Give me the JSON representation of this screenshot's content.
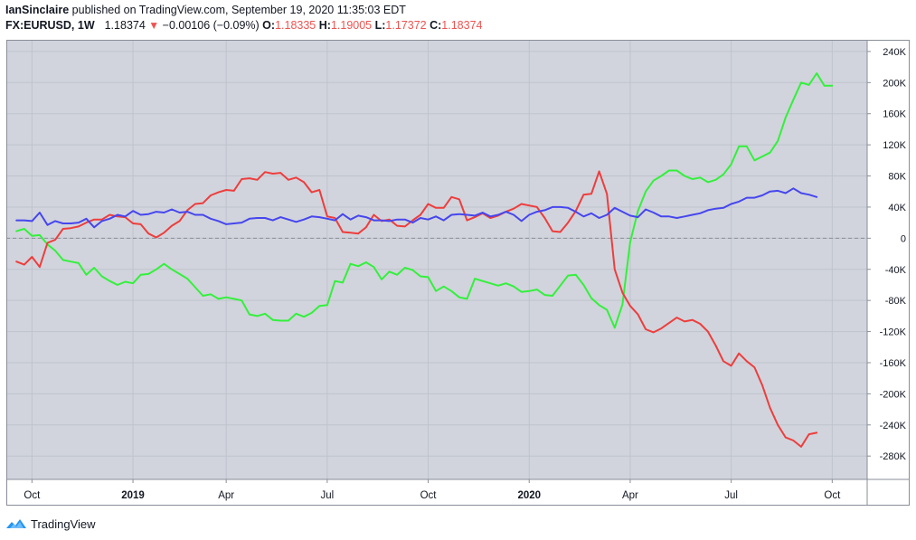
{
  "header": {
    "author": "IanSinclaire",
    "published_text": "published on TradingView.com, September 19, 2020 11:35:03 EDT",
    "symbol": "FX:EURUSD,",
    "interval": "1W",
    "price": "1.18374",
    "change": "−0.00106 (−0.09%)",
    "o_label": "O:",
    "o_value": "1.18335",
    "h_label": "H:",
    "h_value": "1.19005",
    "l_label": "L:",
    "l_value": "1.17372",
    "c_label": "C:",
    "c_value": "1.18374"
  },
  "footer": {
    "brand": "TradingView",
    "logo_icon": "tradingview-logo-icon"
  },
  "colors": {
    "plot_bg": "#d1d4dc",
    "grid": "#bfc3cc",
    "green": "#33f03c",
    "red": "#ee3d3d",
    "blue": "#4646ee",
    "zero_line": "#8a8e99",
    "down_arrow": "#ef5350"
  },
  "chart_data": {
    "type": "line",
    "title": "",
    "xlabel": "",
    "ylabel": "",
    "ylim": [
      -310000,
      255000
    ],
    "y_ticks": [
      240000,
      200000,
      160000,
      120000,
      80000,
      40000,
      0,
      -40000,
      -80000,
      -120000,
      -160000,
      -200000,
      -240000,
      -280000
    ],
    "y_tick_labels": [
      "240K",
      "200K",
      "160K",
      "120K",
      "80K",
      "40K",
      "0",
      "-40K",
      "-80K",
      "-120K",
      "-160K",
      "-200K",
      "-240K",
      "-280K"
    ],
    "x_ticks": [
      {
        "label": "Oct",
        "week": 2,
        "bold": false
      },
      {
        "label": "2019",
        "week": 15,
        "bold": true
      },
      {
        "label": "Apr",
        "week": 27,
        "bold": false
      },
      {
        "label": "Jul",
        "week": 40,
        "bold": false
      },
      {
        "label": "Oct",
        "week": 53,
        "bold": false
      },
      {
        "label": "2020",
        "week": 66,
        "bold": true
      },
      {
        "label": "Apr",
        "week": 79,
        "bold": false
      },
      {
        "label": "Jul",
        "week": 92,
        "bold": false
      },
      {
        "label": "Oct",
        "week": 105,
        "bold": false
      }
    ],
    "x_range": [
      -1.3,
      109.5
    ],
    "x_start": "2018-09-18",
    "x_step": "1 week",
    "grid": true,
    "legend": "none",
    "zero_line": true,
    "series": [
      {
        "color_key": "green",
        "values": [
          9000,
          12000,
          3000,
          4000,
          -8000,
          -16000,
          -28000,
          -30000,
          -32000,
          -47000,
          -38000,
          -49000,
          -55000,
          -60000,
          -56000,
          -58000,
          -47000,
          -46000,
          -40000,
          -33000,
          -40000,
          -46000,
          -52000,
          -63000,
          -74000,
          -72000,
          -78000,
          -76000,
          -78000,
          -80000,
          -98000,
          -100000,
          -97000,
          -105000,
          -106000,
          -106000,
          -97000,
          -101000,
          -96000,
          -87000,
          -86000,
          -55000,
          -57000,
          -33000,
          -36000,
          -31000,
          -37000,
          -53000,
          -43000,
          -47000,
          -38000,
          -41000,
          -49000,
          -50000,
          -68000,
          -62000,
          -68000,
          -76000,
          -78000,
          -52000,
          -55000,
          -58000,
          -61000,
          -58000,
          -62000,
          -69000,
          -68000,
          -66000,
          -73000,
          -74000,
          -61000,
          -48000,
          -47000,
          -60000,
          -77000,
          -86000,
          -92000,
          -115000,
          -85000,
          -5000,
          35000,
          60000,
          74000,
          80000,
          87000,
          87000,
          80000,
          76000,
          78000,
          72000,
          75000,
          82000,
          95000,
          118000,
          118000,
          100000,
          105000,
          110000,
          125000,
          155000,
          178000,
          200000,
          197000,
          212000,
          196000,
          196000
        ]
      },
      {
        "color_key": "red",
        "values": [
          -30000,
          -34000,
          -24000,
          -37000,
          -6000,
          -2000,
          12000,
          13000,
          15000,
          20000,
          24000,
          24000,
          30000,
          28000,
          27000,
          19000,
          18000,
          6000,
          1000,
          7000,
          16000,
          22000,
          36000,
          44000,
          45000,
          55000,
          59000,
          62000,
          61000,
          76000,
          77000,
          75000,
          85000,
          83000,
          84000,
          75000,
          78000,
          72000,
          59000,
          62000,
          28000,
          26000,
          8000,
          7000,
          6000,
          14000,
          30000,
          22000,
          24000,
          16000,
          15000,
          23000,
          30000,
          44000,
          39000,
          39000,
          53000,
          50000,
          23000,
          27000,
          32000,
          26000,
          29000,
          34000,
          38000,
          44000,
          42000,
          40000,
          26000,
          9000,
          8000,
          20000,
          35000,
          56000,
          57000,
          86000,
          57000,
          -40000,
          -70000,
          -87000,
          -98000,
          -117000,
          -121000,
          -116000,
          -109000,
          -102000,
          -107000,
          -105000,
          -110000,
          -120000,
          -138000,
          -158000,
          -164000,
          -148000,
          -158000,
          -166000,
          -189000,
          -218000,
          -240000,
          -256000,
          -260000,
          -268000,
          -252000,
          -250000
        ]
      },
      {
        "color_key": "blue",
        "values": [
          23000,
          23000,
          22000,
          33000,
          17000,
          22000,
          19000,
          19000,
          20000,
          25000,
          14000,
          22000,
          25000,
          30000,
          28000,
          35000,
          30000,
          31000,
          34000,
          33000,
          37000,
          33000,
          34000,
          30000,
          30000,
          25000,
          22000,
          18000,
          19000,
          20000,
          25000,
          26000,
          26000,
          23000,
          27000,
          24000,
          21000,
          24000,
          28000,
          27000,
          25000,
          23000,
          31000,
          24000,
          29000,
          27000,
          23000,
          23000,
          22000,
          24000,
          24000,
          20000,
          26000,
          24000,
          28000,
          23000,
          30000,
          31000,
          30000,
          29000,
          33000,
          28000,
          30000,
          34000,
          30000,
          22000,
          30000,
          34000,
          36000,
          40000,
          40000,
          39000,
          34000,
          28000,
          32000,
          26000,
          30000,
          39000,
          34000,
          29000,
          27000,
          37000,
          33000,
          28000,
          28000,
          26000,
          28000,
          30000,
          32000,
          36000,
          38000,
          39000,
          44000,
          47000,
          52000,
          52000,
          55000,
          60000,
          61000,
          58000,
          64000,
          58000,
          56000,
          53000
        ]
      }
    ]
  }
}
